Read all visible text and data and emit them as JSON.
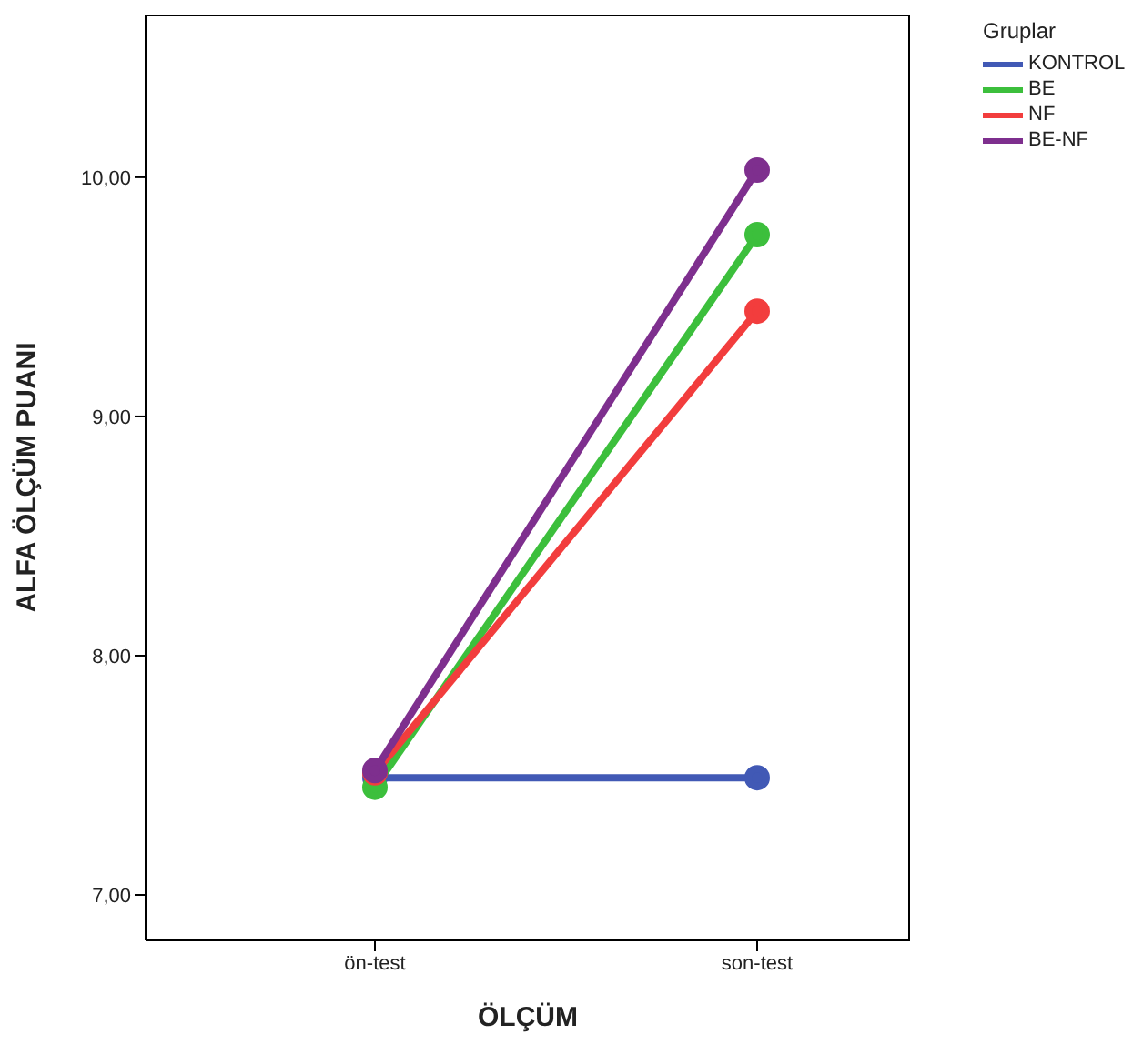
{
  "chart_data": {
    "type": "line",
    "xlabel": "ÖLÇÜM",
    "ylabel": "ALFA ÖLÇÜM PUANI",
    "legend_title": "Gruplar",
    "categories": [
      "ön-test",
      "son-test"
    ],
    "series": [
      {
        "name": "KONTROL",
        "color": "#4159b5",
        "values": [
          7.49,
          7.49
        ]
      },
      {
        "name": "BE",
        "color": "#3cbf3c",
        "values": [
          7.45,
          9.76
        ]
      },
      {
        "name": "NF",
        "color": "#f23d3d",
        "values": [
          7.51,
          9.44
        ]
      },
      {
        "name": "BE-NF",
        "color": "#7e2f8e",
        "values": [
          7.52,
          10.03
        ]
      }
    ],
    "ylim": [
      6.81,
      10.68
    ],
    "yticks": [
      {
        "value": 7,
        "label": "7,00"
      },
      {
        "value": 8,
        "label": "8,00"
      },
      {
        "value": 9,
        "label": "9,00"
      },
      {
        "value": 10,
        "label": "10,00"
      }
    ],
    "grid": false,
    "legend": "right",
    "marker": "circle",
    "line_style": "solid"
  }
}
